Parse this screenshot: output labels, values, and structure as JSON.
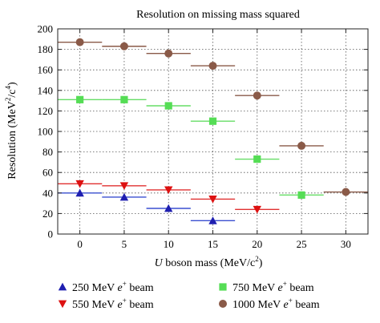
{
  "chart_data": {
    "type": "scatter",
    "title": "Resolution on missing mass squared",
    "xlabel": {
      "italic": "U",
      "text": " boson mass (MeV/c",
      "sup": "2",
      "after": ")"
    },
    "ylabel": {
      "text": "Resolution (MeV",
      "sup1": "2",
      "mid": "/c",
      "sup2": "4",
      "after": ")"
    },
    "xlim": [
      -2.5,
      32.5
    ],
    "ylim": [
      0,
      200
    ],
    "x_ticks": [
      0,
      5,
      10,
      15,
      20,
      25,
      30
    ],
    "y_ticks": [
      0,
      20,
      40,
      60,
      80,
      100,
      120,
      140,
      160,
      180,
      200
    ],
    "grid": true,
    "legend_position": "bottom",
    "series": [
      {
        "name": "250 MeV e+ beam",
        "legend": {
          "text": "250 MeV ",
          "italic": "e",
          "sup": "+",
          "after": " beam"
        },
        "marker": "triangle-up",
        "color": "#1f1fb0",
        "bar_color": "#3a4fd0",
        "points": [
          {
            "x": 0,
            "y": 40,
            "xerr": 2.5
          },
          {
            "x": 5,
            "y": 36,
            "xerr": 2.5
          },
          {
            "x": 10,
            "y": 25,
            "xerr": 2.5
          },
          {
            "x": 15,
            "y": 13,
            "xerr": 2.5
          }
        ]
      },
      {
        "name": "550 MeV e+ beam",
        "legend": {
          "text": "550 MeV ",
          "italic": "e",
          "sup": "+",
          "after": " beam"
        },
        "marker": "triangle-down",
        "color": "#dd1111",
        "bar_color": "#e03030",
        "points": [
          {
            "x": 0,
            "y": 49,
            "xerr": 2.5
          },
          {
            "x": 5,
            "y": 47,
            "xerr": 2.5
          },
          {
            "x": 10,
            "y": 43,
            "xerr": 2.5
          },
          {
            "x": 15,
            "y": 34,
            "xerr": 2.5
          },
          {
            "x": 20,
            "y": 24,
            "xerr": 2.5
          }
        ]
      },
      {
        "name": "750 MeV e+ beam",
        "legend": {
          "text": "750 MeV ",
          "italic": "e",
          "sup": "+",
          "after": " beam"
        },
        "marker": "square",
        "color": "#55dd55",
        "bar_color": "#66dd66",
        "points": [
          {
            "x": 0,
            "y": 131,
            "xerr": 2.5
          },
          {
            "x": 5,
            "y": 131,
            "xerr": 2.5
          },
          {
            "x": 10,
            "y": 125,
            "xerr": 2.5
          },
          {
            "x": 15,
            "y": 110,
            "xerr": 2.5
          },
          {
            "x": 20,
            "y": 73,
            "xerr": 2.5
          },
          {
            "x": 25,
            "y": 38,
            "xerr": 2.5
          }
        ]
      },
      {
        "name": "1000 MeV e+ beam",
        "legend": {
          "text": "1000 MeV ",
          "italic": "e",
          "sup": "+",
          "after": " beam"
        },
        "marker": "circle",
        "color": "#8a5a48",
        "bar_color": "#8a5a48",
        "points": [
          {
            "x": 0,
            "y": 187,
            "xerr": 2.5
          },
          {
            "x": 5,
            "y": 183,
            "xerr": 2.5
          },
          {
            "x": 10,
            "y": 176,
            "xerr": 2.5
          },
          {
            "x": 15,
            "y": 164,
            "xerr": 2.5
          },
          {
            "x": 20,
            "y": 135,
            "xerr": 2.5
          },
          {
            "x": 25,
            "y": 86,
            "xerr": 2.5
          },
          {
            "x": 30,
            "y": 41,
            "xerr": 2.5
          }
        ]
      }
    ]
  }
}
